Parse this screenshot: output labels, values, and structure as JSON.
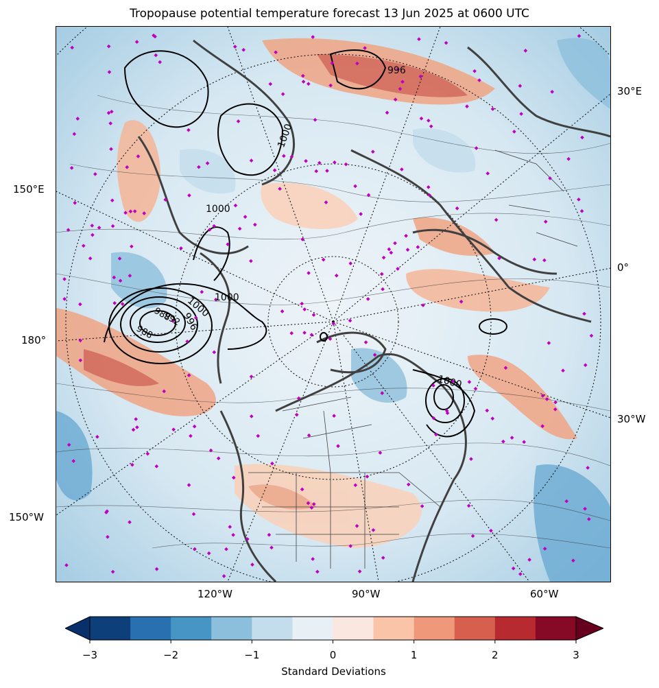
{
  "title": "Tropopause potential temperature forecast 13 Jun 2025 at 0600 UTC",
  "longitude_labels": {
    "left": [
      "150°E",
      "180°",
      "150°W"
    ],
    "right": [
      "30°E",
      "0°",
      "30°W"
    ],
    "bottom": [
      "120°W",
      "90°W",
      "60°W"
    ]
  },
  "contour_labels": [
    "996",
    "1000",
    "1000",
    "1000",
    "1000",
    "996",
    "988",
    "988",
    "992",
    "1000"
  ],
  "colorbar": {
    "label": "Standard Deviations",
    "ticks": [
      "−3",
      "−2",
      "−1",
      "0",
      "1",
      "2",
      "3"
    ],
    "colors": [
      "#08306b",
      "#0d3f7a",
      "#2970b1",
      "#4695c4",
      "#8cbfdc",
      "#c3ddec",
      "#e8f0f6",
      "#fae8e0",
      "#f9c4a8",
      "#f0997a",
      "#d6604d",
      "#b72a2f",
      "#860a25",
      "#67001f"
    ]
  },
  "colors": {
    "station_markers": "#c000c0",
    "coastline": "#404040",
    "pressure_contours": "#000000"
  }
}
